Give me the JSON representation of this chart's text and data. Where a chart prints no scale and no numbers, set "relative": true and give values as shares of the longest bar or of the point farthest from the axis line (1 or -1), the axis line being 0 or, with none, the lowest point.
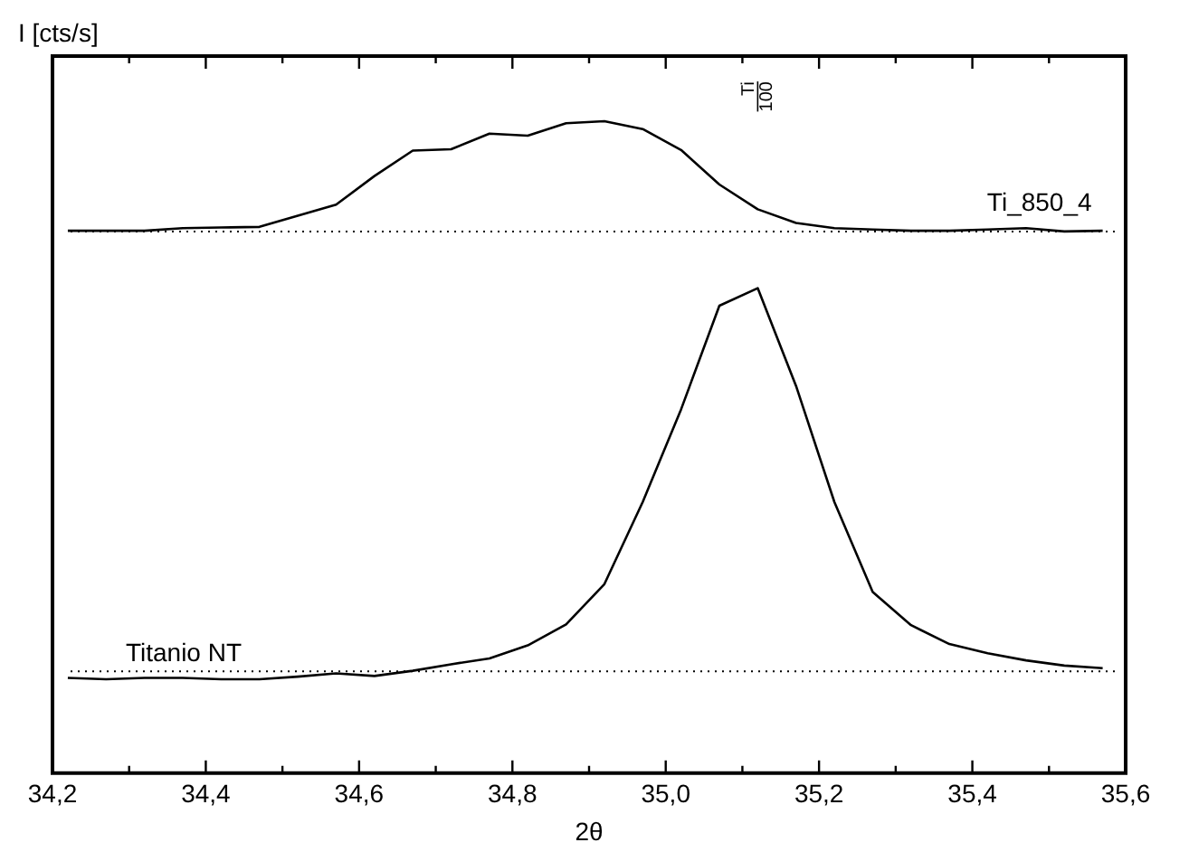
{
  "chart_data": {
    "type": "line",
    "xlabel": "2θ",
    "ylabel": "I [cts/s]",
    "relative": true,
    "legend": false,
    "grid": false,
    "marker": "none",
    "tick_labels": "x",
    "xlim": [
      34.2,
      35.6
    ],
    "xticks": [
      {
        "value": 34.2,
        "label": "34,2"
      },
      {
        "value": 34.3,
        "label": null
      },
      {
        "value": 34.4,
        "label": "34,4"
      },
      {
        "value": 34.5,
        "label": null
      },
      {
        "value": 34.6,
        "label": "34,6"
      },
      {
        "value": 34.7,
        "label": null
      },
      {
        "value": 34.8,
        "label": "34,8"
      },
      {
        "value": 34.9,
        "label": null
      },
      {
        "value": 35.0,
        "label": "35,0"
      },
      {
        "value": 35.1,
        "label": null
      },
      {
        "value": 35.2,
        "label": "35,2"
      },
      {
        "value": 35.3,
        "label": null
      },
      {
        "value": 35.4,
        "label": "35,4"
      },
      {
        "value": 35.5,
        "label": null
      },
      {
        "value": 35.6,
        "label": "35,6"
      }
    ],
    "x": [
      34.22,
      34.27,
      34.32,
      34.37,
      34.42,
      34.47,
      34.52,
      34.57,
      34.62,
      34.67,
      34.72,
      34.77,
      34.82,
      34.87,
      34.92,
      34.97,
      35.02,
      35.07,
      35.12,
      35.17,
      35.22,
      35.27,
      35.32,
      35.37,
      35.42,
      35.47,
      35.52,
      35.57
    ],
    "series": [
      {
        "name": "Ti_850_4",
        "color": "#000000",
        "values": [
          0.832,
          0.832,
          0.832,
          0.836,
          0.837,
          0.838,
          0.855,
          0.872,
          0.916,
          0.955,
          0.957,
          0.981,
          0.978,
          0.997,
          1.0,
          0.988,
          0.956,
          0.903,
          0.865,
          0.844,
          0.836,
          0.834,
          0.832,
          0.832,
          0.834,
          0.836,
          0.831,
          0.832
        ]
      },
      {
        "name": "Titanio NT",
        "color": "#000000",
        "values": [
          0.146,
          0.144,
          0.146,
          0.146,
          0.144,
          0.144,
          0.148,
          0.153,
          0.149,
          0.157,
          0.167,
          0.176,
          0.196,
          0.228,
          0.29,
          0.416,
          0.558,
          0.717,
          0.744,
          0.594,
          0.416,
          0.278,
          0.227,
          0.198,
          0.184,
          0.173,
          0.165,
          0.161
        ]
      }
    ],
    "ref_lines": [
      {
        "axis": "y",
        "value": 0.831,
        "line_style": "dotted",
        "color": "#000000"
      },
      {
        "axis": "y",
        "value": 0.156,
        "line_style": "dotted",
        "color": "#000000"
      }
    ],
    "annotations": [
      "Ti 100"
    ]
  }
}
